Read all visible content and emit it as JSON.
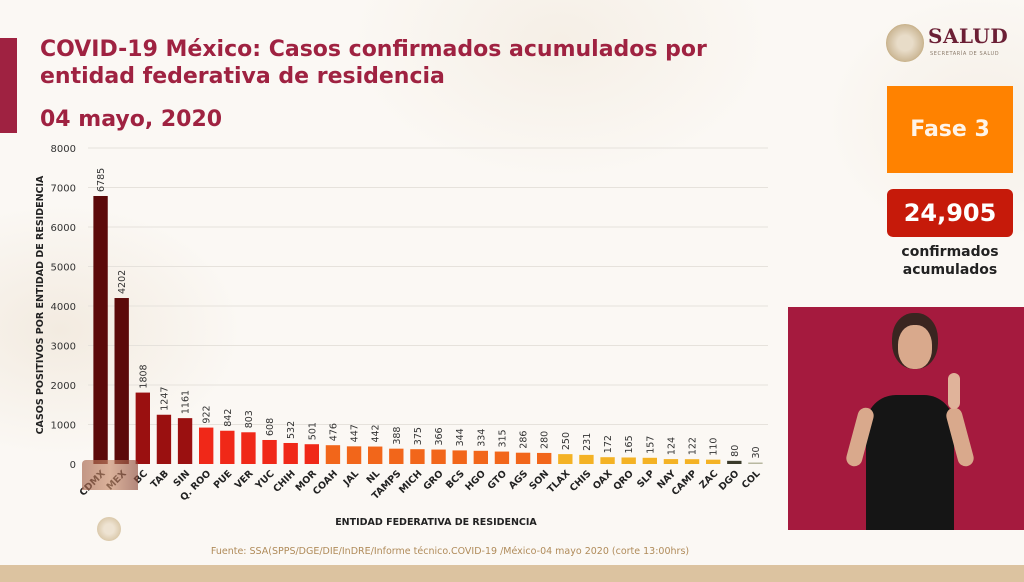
{
  "header": {
    "title": "COVID-19 México: Casos confirmados acumulados por entidad federativa de residencia",
    "date": "04 mayo, 2020"
  },
  "logo": {
    "name": "SALUD",
    "subtitle": "SECRETARÍA DE SALUD"
  },
  "sidebar": {
    "phase_label": "Fase 3",
    "total_count": "24,905",
    "total_label_line1": "confirmados",
    "total_label_line2": "acumulados",
    "phase_color": "#ff8200",
    "count_color": "#c61a0a"
  },
  "footer": {
    "source": "Fuente: SSA(SPPS/DGE/DIE/InDRE/Informe técnico.COVID-19 /México-04 mayo 2020 (corte 13:00hrs)"
  },
  "chart_data": {
    "type": "bar",
    "title": "COVID-19 México: Casos confirmados acumulados por entidad federativa de residencia",
    "xlabel": "ENTIDAD FEDERATIVA DE RESIDENCIA",
    "ylabel": "CASOS POSITIVOS POR ENTIDAD DE RESIDENCIA",
    "ylim": [
      0,
      8000
    ],
    "yticks": [
      0,
      1000,
      2000,
      3000,
      4000,
      5000,
      6000,
      7000,
      8000
    ],
    "grid": true,
    "legend": "none",
    "categories": [
      "CDMX",
      "MEX",
      "BC",
      "TAB",
      "SIN",
      "Q. ROO",
      "PUE",
      "VER",
      "YUC",
      "CHIH",
      "MOR",
      "COAH",
      "JAL",
      "NL",
      "TAMPS",
      "MICH",
      "GRO",
      "BCS",
      "HGO",
      "GTO",
      "AGS",
      "SON",
      "TLAX",
      "CHIS",
      "OAX",
      "QRO",
      "SLP",
      "NAY",
      "CAMP",
      "ZAC",
      "DGO",
      "COL"
    ],
    "values": [
      6785,
      4202,
      1808,
      1247,
      1161,
      922,
      842,
      803,
      608,
      532,
      501,
      476,
      447,
      442,
      388,
      375,
      366,
      344,
      334,
      315,
      286,
      280,
      250,
      231,
      172,
      165,
      157,
      124,
      122,
      110,
      80,
      30
    ],
    "colors": [
      "#5c0a0a",
      "#5c0a0a",
      "#9a1010",
      "#9a1010",
      "#9a1010",
      "#f02818",
      "#f02818",
      "#f02818",
      "#f02818",
      "#f02818",
      "#f02818",
      "#f2661a",
      "#f2661a",
      "#f2661a",
      "#f2661a",
      "#f2661a",
      "#f2661a",
      "#f2661a",
      "#f2661a",
      "#f2661a",
      "#f2661a",
      "#f2661a",
      "#f4b224",
      "#f4b224",
      "#f4b224",
      "#f4b224",
      "#f4b224",
      "#f4b224",
      "#f4b224",
      "#f4b224",
      "#3a3a2a",
      "#b8b8a0"
    ]
  }
}
